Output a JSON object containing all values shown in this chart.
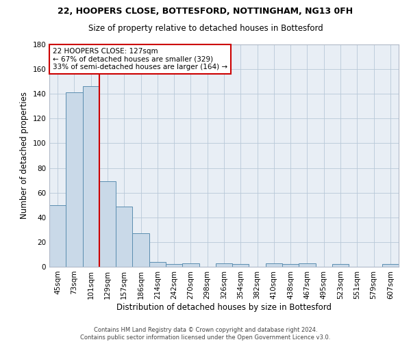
{
  "title1": "22, HOOPERS CLOSE, BOTTESFORD, NOTTINGHAM, NG13 0FH",
  "title2": "Size of property relative to detached houses in Bottesford",
  "xlabel": "Distribution of detached houses by size in Bottesford",
  "ylabel": "Number of detached properties",
  "footer1": "Contains HM Land Registry data © Crown copyright and database right 2024.",
  "footer2": "Contains public sector information licensed under the Open Government Licence v3.0.",
  "bar_labels": [
    "45sqm",
    "73sqm",
    "101sqm",
    "129sqm",
    "157sqm",
    "186sqm",
    "214sqm",
    "242sqm",
    "270sqm",
    "298sqm",
    "326sqm",
    "354sqm",
    "382sqm",
    "410sqm",
    "438sqm",
    "467sqm",
    "495sqm",
    "523sqm",
    "551sqm",
    "579sqm",
    "607sqm"
  ],
  "bar_values": [
    50,
    141,
    146,
    69,
    49,
    27,
    4,
    2,
    3,
    0,
    3,
    2,
    0,
    3,
    2,
    3,
    0,
    2,
    0,
    0,
    2
  ],
  "bar_color": "#c9d9e8",
  "bar_edge_color": "#5a8db0",
  "ylim": [
    0,
    180
  ],
  "yticks": [
    0,
    20,
    40,
    60,
    80,
    100,
    120,
    140,
    160,
    180
  ],
  "property_line_color": "#cc0000",
  "annotation_line1": "22 HOOPERS CLOSE: 127sqm",
  "annotation_line2": "← 67% of detached houses are smaller (329)",
  "annotation_line3": "33% of semi-detached houses are larger (164) →",
  "annotation_box_color": "#ffffff",
  "annotation_box_edge": "#cc0000",
  "background_color": "#e8eef5"
}
